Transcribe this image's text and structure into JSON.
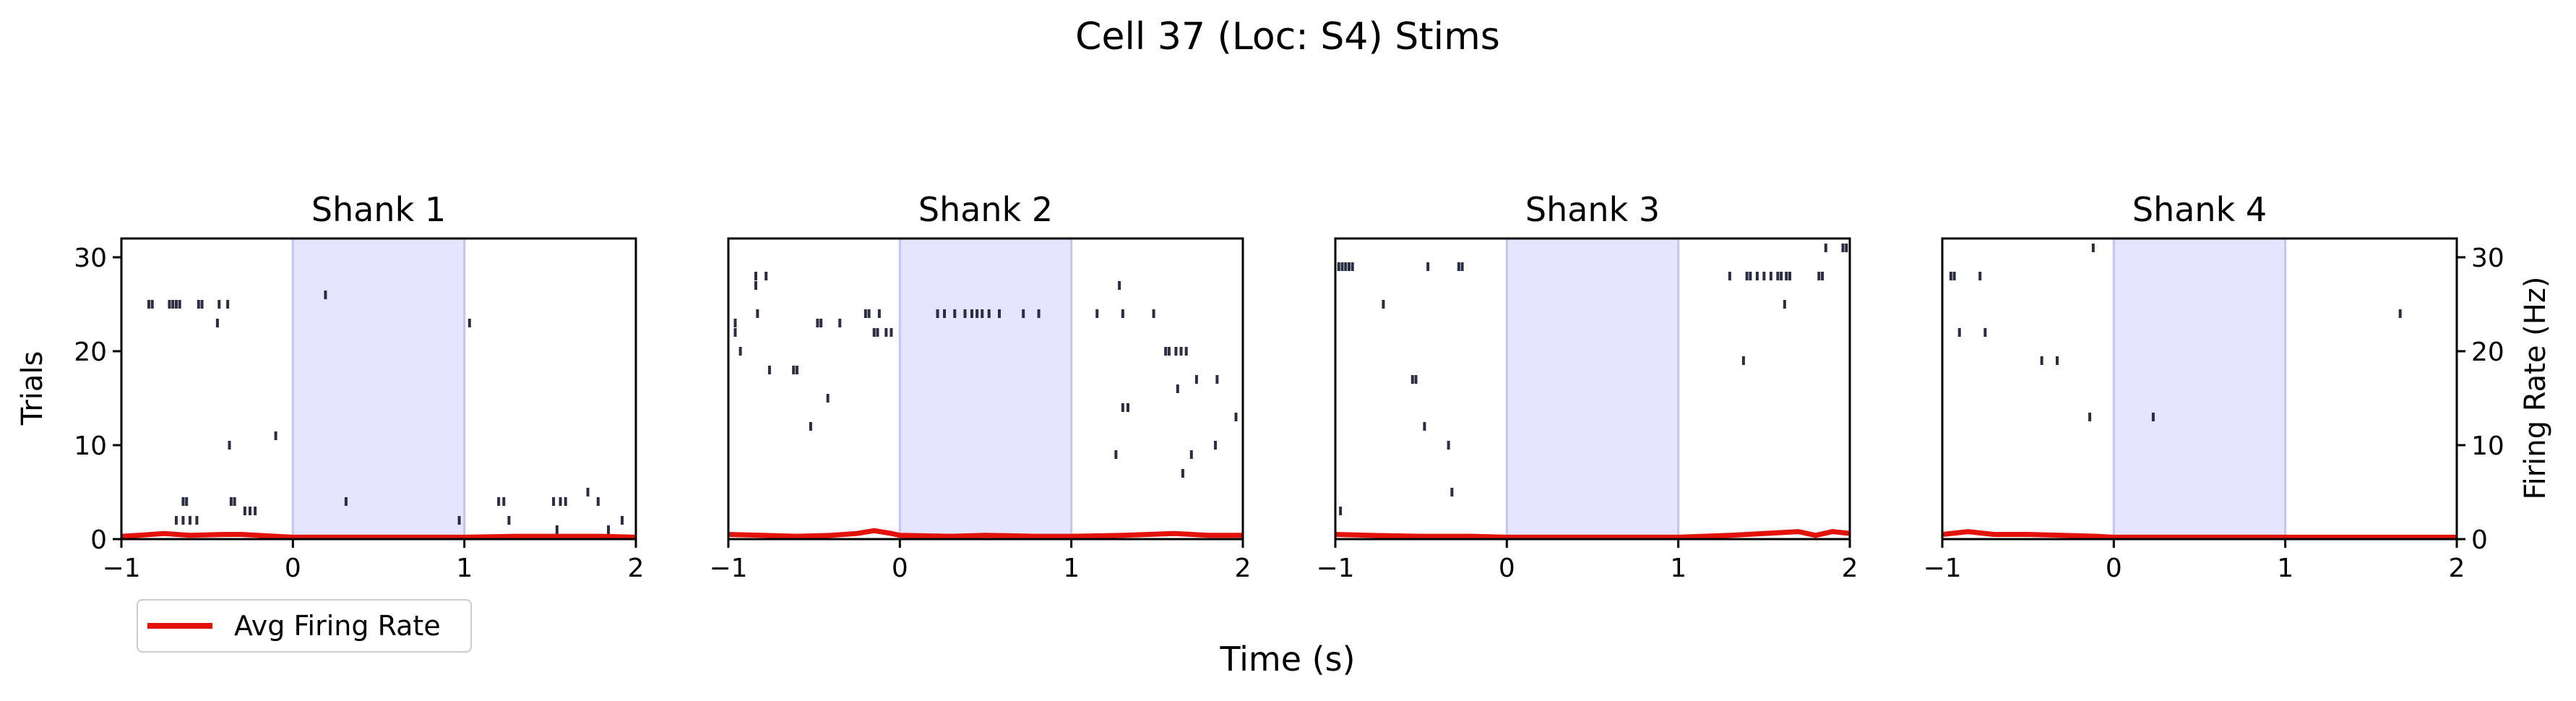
{
  "figure": {
    "title": "Cell 37 (Loc: S4) Stims",
    "xlabel": "Time (s)",
    "ylabel_left": "Trials",
    "ylabel_right": "Firing Rate (Hz)",
    "legend_label": "Avg Firing Rate"
  },
  "colors": {
    "spike": "#2b2d42",
    "stim_fill": "#e4e4fc",
    "stim_edge": "#c4c4f2",
    "rate_line": "#e3120b",
    "axis": "#000000"
  },
  "chart_data": {
    "type": "scatter",
    "xlim": [
      -1,
      2
    ],
    "ylim": [
      0,
      32
    ],
    "xticks": [
      -1,
      0,
      1,
      2
    ],
    "xtick_labels": [
      "−1",
      "0",
      "1",
      "2"
    ],
    "yticks": [
      0,
      10,
      20,
      30
    ],
    "ytick_labels": [
      "0",
      "10",
      "20",
      "30"
    ],
    "stim_window": [
      0,
      1
    ],
    "panels": [
      {
        "title": "Shank 1",
        "spikes": [
          [
            -0.84,
            25
          ],
          [
            -0.82,
            25
          ],
          [
            -0.72,
            25
          ],
          [
            -0.7,
            25
          ],
          [
            -0.68,
            25
          ],
          [
            -0.66,
            25
          ],
          [
            -0.55,
            25
          ],
          [
            -0.53,
            25
          ],
          [
            -0.43,
            25
          ],
          [
            -0.38,
            25
          ],
          [
            -0.44,
            23
          ],
          [
            -0.37,
            10
          ],
          [
            -0.1,
            11
          ],
          [
            -0.64,
            4
          ],
          [
            -0.62,
            4
          ],
          [
            -0.36,
            4
          ],
          [
            -0.34,
            4
          ],
          [
            -0.68,
            2
          ],
          [
            -0.64,
            2
          ],
          [
            -0.6,
            2
          ],
          [
            -0.56,
            2
          ],
          [
            -0.28,
            3
          ],
          [
            -0.25,
            3
          ],
          [
            -0.22,
            3
          ],
          [
            0.19,
            26
          ],
          [
            0.31,
            4
          ],
          [
            1.03,
            23
          ],
          [
            0.97,
            2
          ],
          [
            1.2,
            4
          ],
          [
            1.23,
            4
          ],
          [
            1.26,
            2
          ],
          [
            1.52,
            4
          ],
          [
            1.56,
            4
          ],
          [
            1.59,
            4
          ],
          [
            1.54,
            1
          ],
          [
            1.72,
            5
          ],
          [
            1.78,
            4
          ],
          [
            1.84,
            1
          ],
          [
            1.92,
            2
          ]
        ],
        "rate": [
          [
            -1,
            0.3
          ],
          [
            -0.9,
            0.4
          ],
          [
            -0.75,
            0.6
          ],
          [
            -0.6,
            0.4
          ],
          [
            -0.4,
            0.5
          ],
          [
            -0.3,
            0.5
          ],
          [
            -0.1,
            0.3
          ],
          [
            0,
            0.2
          ],
          [
            0.5,
            0.2
          ],
          [
            1,
            0.2
          ],
          [
            1.3,
            0.3
          ],
          [
            1.6,
            0.3
          ],
          [
            1.8,
            0.3
          ],
          [
            2,
            0.2
          ]
        ]
      },
      {
        "title": "Shank 2",
        "spikes": [
          [
            -0.84,
            28
          ],
          [
            -0.78,
            28
          ],
          [
            -0.84,
            27
          ],
          [
            -0.96,
            23
          ],
          [
            -0.96,
            22
          ],
          [
            -0.93,
            20
          ],
          [
            -0.83,
            24
          ],
          [
            -0.76,
            18
          ],
          [
            -0.62,
            18
          ],
          [
            -0.6,
            18
          ],
          [
            -0.52,
            12
          ],
          [
            -0.42,
            15
          ],
          [
            -0.48,
            23
          ],
          [
            -0.46,
            23
          ],
          [
            -0.35,
            23
          ],
          [
            -0.2,
            24
          ],
          [
            -0.18,
            24
          ],
          [
            -0.15,
            22
          ],
          [
            -0.12,
            24
          ],
          [
            -0.13,
            22
          ],
          [
            -0.08,
            22
          ],
          [
            -0.05,
            22
          ],
          [
            0.22,
            24
          ],
          [
            0.26,
            24
          ],
          [
            0.32,
            24
          ],
          [
            0.38,
            24
          ],
          [
            0.42,
            24
          ],
          [
            0.45,
            24
          ],
          [
            0.48,
            24
          ],
          [
            0.52,
            24
          ],
          [
            0.58,
            24
          ],
          [
            0.72,
            24
          ],
          [
            0.81,
            24
          ],
          [
            1.15,
            24
          ],
          [
            1.28,
            27
          ],
          [
            1.3,
            24
          ],
          [
            1.48,
            24
          ],
          [
            1.26,
            9
          ],
          [
            1.3,
            14
          ],
          [
            1.33,
            14
          ],
          [
            1.55,
            20
          ],
          [
            1.57,
            20
          ],
          [
            1.61,
            20
          ],
          [
            1.64,
            20
          ],
          [
            1.67,
            20
          ],
          [
            1.62,
            16
          ],
          [
            1.73,
            17
          ],
          [
            1.7,
            9
          ],
          [
            1.65,
            7
          ],
          [
            1.85,
            17
          ],
          [
            1.84,
            10
          ],
          [
            1.96,
            13
          ]
        ],
        "rate": [
          [
            -1,
            0.5
          ],
          [
            -0.8,
            0.4
          ],
          [
            -0.6,
            0.3
          ],
          [
            -0.4,
            0.4
          ],
          [
            -0.25,
            0.6
          ],
          [
            -0.15,
            0.9
          ],
          [
            -0.05,
            0.6
          ],
          [
            0,
            0.4
          ],
          [
            0.3,
            0.3
          ],
          [
            0.5,
            0.4
          ],
          [
            0.8,
            0.3
          ],
          [
            1.0,
            0.3
          ],
          [
            1.3,
            0.4
          ],
          [
            1.6,
            0.6
          ],
          [
            1.8,
            0.4
          ],
          [
            2,
            0.4
          ]
        ]
      },
      {
        "title": "Shank 3",
        "spikes": [
          [
            -0.98,
            29
          ],
          [
            -0.96,
            29
          ],
          [
            -0.94,
            29
          ],
          [
            -0.92,
            29
          ],
          [
            -0.9,
            29
          ],
          [
            -0.72,
            25
          ],
          [
            -0.46,
            29
          ],
          [
            -0.28,
            29
          ],
          [
            -0.26,
            29
          ],
          [
            -0.55,
            17
          ],
          [
            -0.53,
            17
          ],
          [
            -0.48,
            12
          ],
          [
            -0.34,
            10
          ],
          [
            -0.32,
            5
          ],
          [
            -0.97,
            3
          ],
          [
            1.3,
            28
          ],
          [
            1.4,
            28
          ],
          [
            1.42,
            28
          ],
          [
            1.46,
            28
          ],
          [
            1.5,
            28
          ],
          [
            1.54,
            28
          ],
          [
            1.58,
            28
          ],
          [
            1.6,
            28
          ],
          [
            1.63,
            28
          ],
          [
            1.65,
            28
          ],
          [
            1.62,
            25
          ],
          [
            1.38,
            19
          ],
          [
            1.82,
            28
          ],
          [
            1.84,
            28
          ],
          [
            1.86,
            31
          ],
          [
            1.96,
            31
          ],
          [
            1.98,
            31
          ]
        ],
        "rate": [
          [
            -1,
            0.5
          ],
          [
            -0.8,
            0.4
          ],
          [
            -0.5,
            0.3
          ],
          [
            -0.2,
            0.3
          ],
          [
            0,
            0.2
          ],
          [
            0.5,
            0.2
          ],
          [
            1.0,
            0.2
          ],
          [
            1.3,
            0.4
          ],
          [
            1.5,
            0.6
          ],
          [
            1.7,
            0.8
          ],
          [
            1.8,
            0.4
          ],
          [
            1.9,
            0.8
          ],
          [
            2,
            0.6
          ]
        ]
      },
      {
        "title": "Shank 4",
        "spikes": [
          [
            -0.95,
            28
          ],
          [
            -0.93,
            28
          ],
          [
            -0.78,
            28
          ],
          [
            -0.9,
            22
          ],
          [
            -0.75,
            22
          ],
          [
            -0.42,
            19
          ],
          [
            -0.33,
            19
          ],
          [
            -0.12,
            31
          ],
          [
            -0.14,
            13
          ],
          [
            0.23,
            13
          ],
          [
            1.67,
            24
          ]
        ],
        "rate": [
          [
            -1,
            0.5
          ],
          [
            -0.85,
            0.8
          ],
          [
            -0.7,
            0.5
          ],
          [
            -0.5,
            0.5
          ],
          [
            -0.3,
            0.4
          ],
          [
            -0.1,
            0.3
          ],
          [
            0,
            0.2
          ],
          [
            0.5,
            0.2
          ],
          [
            1.0,
            0.2
          ],
          [
            1.5,
            0.2
          ],
          [
            2,
            0.2
          ]
        ]
      }
    ]
  }
}
